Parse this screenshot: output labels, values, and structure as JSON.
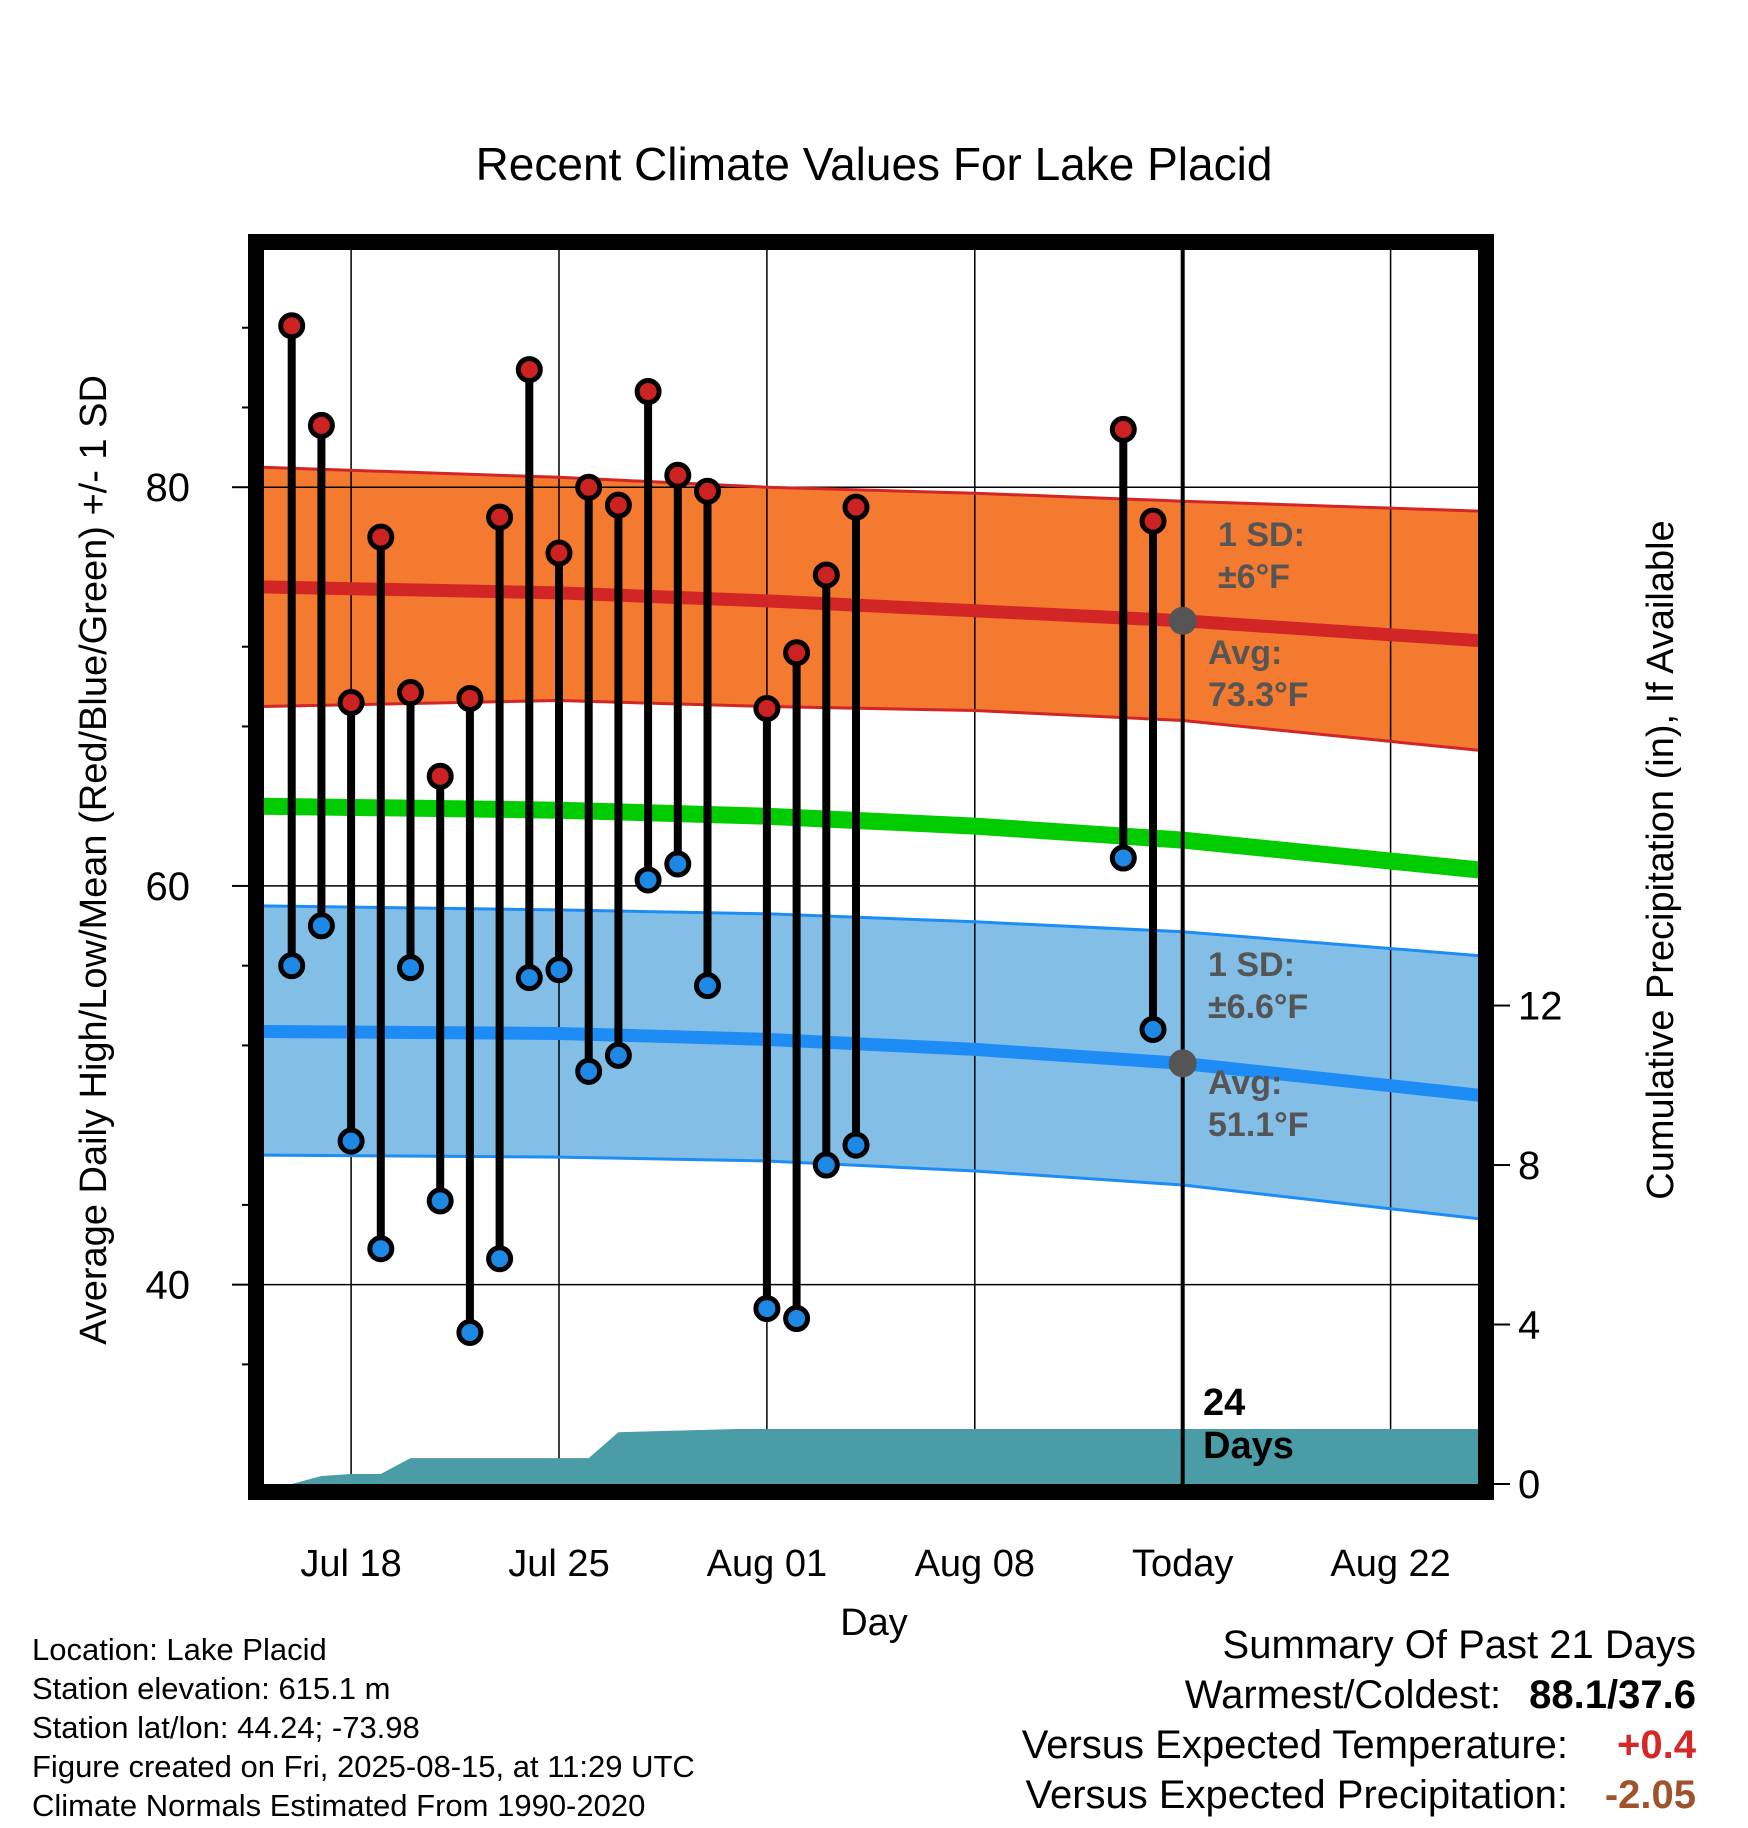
{
  "chart_data": {
    "type": "line",
    "title": "Recent Climate Values For Lake Placid",
    "xlabel": "Day",
    "ylabel_left": "Average Daily High/Low/Mean (Red/Blue/Green) +/- 1 SD",
    "ylabel_right": "Cumulative Precipitation (in), If Available",
    "x_start": "Jul 15",
    "x_end": "Aug 25",
    "ylim_left": [
      30,
      92
    ],
    "ylim_right": [
      0,
      31
    ],
    "left_ticks": [
      "40",
      "60",
      "80"
    ],
    "right_ticks": [
      "0",
      "4",
      "8",
      "12"
    ],
    "x_ticks": [
      {
        "date": "Jul 18",
        "label": "Jul 18"
      },
      {
        "date": "Jul 25",
        "label": "Jul 25"
      },
      {
        "date": "Aug 01",
        "label": "Aug 01"
      },
      {
        "date": "Aug 08",
        "label": "Aug 08"
      },
      {
        "date": "Aug 15",
        "label": "Today"
      },
      {
        "date": "Aug 22",
        "label": "Aug 22"
      }
    ],
    "today": "Aug 15",
    "grid": true,
    "normals": {
      "high_mean": [
        {
          "x": "Jul 15",
          "y": 75.0
        },
        {
          "x": "Jul 25",
          "y": 74.7
        },
        {
          "x": "Aug 01",
          "y": 74.3
        },
        {
          "x": "Aug 08",
          "y": 73.8
        },
        {
          "x": "Aug 15",
          "y": 73.3
        },
        {
          "x": "Aug 25",
          "y": 72.3
        }
      ],
      "high_upper": [
        {
          "x": "Jul 15",
          "y": 81.0
        },
        {
          "x": "Jul 25",
          "y": 80.5
        },
        {
          "x": "Aug 01",
          "y": 80.0
        },
        {
          "x": "Aug 08",
          "y": 79.7
        },
        {
          "x": "Aug 15",
          "y": 79.3
        },
        {
          "x": "Aug 25",
          "y": 78.8
        }
      ],
      "high_lower": [
        {
          "x": "Jul 15",
          "y": 69.0
        },
        {
          "x": "Jul 25",
          "y": 69.3
        },
        {
          "x": "Aug 01",
          "y": 69.0
        },
        {
          "x": "Aug 08",
          "y": 68.8
        },
        {
          "x": "Aug 15",
          "y": 68.3
        },
        {
          "x": "Aug 25",
          "y": 66.8
        }
      ],
      "mean": [
        {
          "x": "Jul 15",
          "y": 64.0
        },
        {
          "x": "Jul 25",
          "y": 63.8
        },
        {
          "x": "Aug 01",
          "y": 63.5
        },
        {
          "x": "Aug 08",
          "y": 63.0
        },
        {
          "x": "Aug 15",
          "y": 62.3
        },
        {
          "x": "Aug 25",
          "y": 60.8
        }
      ],
      "low_mean": [
        {
          "x": "Jul 15",
          "y": 52.7
        },
        {
          "x": "Jul 25",
          "y": 52.6
        },
        {
          "x": "Aug 01",
          "y": 52.3
        },
        {
          "x": "Aug 08",
          "y": 51.8
        },
        {
          "x": "Aug 15",
          "y": 51.1
        },
        {
          "x": "Aug 25",
          "y": 49.5
        }
      ],
      "low_upper": [
        {
          "x": "Jul 15",
          "y": 59.0
        },
        {
          "x": "Jul 25",
          "y": 58.8
        },
        {
          "x": "Aug 01",
          "y": 58.6
        },
        {
          "x": "Aug 08",
          "y": 58.2
        },
        {
          "x": "Aug 15",
          "y": 57.7
        },
        {
          "x": "Aug 25",
          "y": 56.5
        }
      ],
      "low_lower": [
        {
          "x": "Jul 15",
          "y": 46.5
        },
        {
          "x": "Jul 25",
          "y": 46.4
        },
        {
          "x": "Aug 01",
          "y": 46.2
        },
        {
          "x": "Aug 08",
          "y": 45.7
        },
        {
          "x": "Aug 15",
          "y": 45.0
        },
        {
          "x": "Aug 25",
          "y": 43.3
        }
      ]
    },
    "daily": [
      {
        "date": "Jul 16",
        "high": 88.1,
        "low": 56.0
      },
      {
        "date": "Jul 17",
        "high": 83.1,
        "low": 58.0
      },
      {
        "date": "Jul 18",
        "high": 69.2,
        "low": 47.2
      },
      {
        "date": "Jul 19",
        "high": 77.5,
        "low": 41.8
      },
      {
        "date": "Jul 20",
        "high": 69.7,
        "low": 55.9
      },
      {
        "date": "Jul 21",
        "high": 65.5,
        "low": 44.2
      },
      {
        "date": "Jul 22",
        "high": 69.4,
        "low": 37.6
      },
      {
        "date": "Jul 23",
        "high": 78.5,
        "low": 41.3
      },
      {
        "date": "Jul 24",
        "high": 85.9,
        "low": 55.4
      },
      {
        "date": "Jul 25",
        "high": 76.7,
        "low": 55.8
      },
      {
        "date": "Jul 26",
        "high": 80.0,
        "low": 50.7
      },
      {
        "date": "Jul 27",
        "high": 79.1,
        "low": 51.5
      },
      {
        "date": "Jul 28",
        "high": 84.8,
        "low": 60.3
      },
      {
        "date": "Jul 29",
        "high": 80.6,
        "low": 61.1
      },
      {
        "date": "Jul 30",
        "high": 79.8,
        "low": 55.0
      },
      {
        "date": "Aug 01",
        "high": 68.9,
        "low": 38.8
      },
      {
        "date": "Aug 02",
        "high": 71.7,
        "low": 38.3
      },
      {
        "date": "Aug 03",
        "high": 75.6,
        "low": 46.0
      },
      {
        "date": "Aug 04",
        "high": 79.0,
        "low": 47.0
      },
      {
        "date": "Aug 13",
        "high": 82.9,
        "low": 61.4
      },
      {
        "date": "Aug 14",
        "high": 78.3,
        "low": 52.8
      }
    ],
    "precip_cumulative": [
      {
        "x": "Jul 15",
        "y": 0.0
      },
      {
        "x": "Jul 16",
        "y": 0.0
      },
      {
        "x": "Jul 17",
        "y": 0.2
      },
      {
        "x": "Jul 18",
        "y": 0.25
      },
      {
        "x": "Jul 19",
        "y": 0.25
      },
      {
        "x": "Jul 20",
        "y": 0.65
      },
      {
        "x": "Jul 26",
        "y": 0.65
      },
      {
        "x": "Jul 27",
        "y": 1.3
      },
      {
        "x": "Jul 31",
        "y": 1.38
      },
      {
        "x": "Aug 25",
        "y": 1.38
      }
    ],
    "annotations": {
      "high_sd_title": "1 SD:",
      "high_sd_value": "±6°F",
      "high_avg_title": "Avg:",
      "high_avg_value": "73.3°F",
      "low_sd_title": "1 SD:",
      "low_sd_value": "±6.6°F",
      "low_avg_title": "Avg:",
      "low_avg_value": "51.1°F",
      "days_count": "24",
      "days_word": "Days"
    },
    "colors": {
      "high_band": "#f47a30",
      "high_line": "#d22525",
      "low_band": "#82bee6",
      "low_line": "#1e8cf5",
      "mean_line": "#00cc00",
      "precip": "#4a9ca6",
      "high_dot": "#cc2222",
      "low_dot": "#1e88e5",
      "annotation": "#555555"
    }
  },
  "info": {
    "location": "Location: Lake Placid",
    "elevation": "Station elevation: 615.1 m",
    "latlon": "Station lat/lon: 44.24; -73.98",
    "created": "Figure created on Fri, 2025-08-15, at 11:29 UTC",
    "normals": "Climate Normals Estimated From 1990-2020"
  },
  "summary": {
    "title": "Summary Of Past 21 Days",
    "warm_cold_label": "Warmest/Coldest:",
    "warm_cold_value": "88.1/37.6",
    "temp_label": "Versus Expected Temperature:",
    "temp_value": "+0.4",
    "precip_label": "Versus Expected Precipitation:",
    "precip_value": "-2.05",
    "temp_color": "#d62728",
    "precip_color": "#a0522d"
  }
}
